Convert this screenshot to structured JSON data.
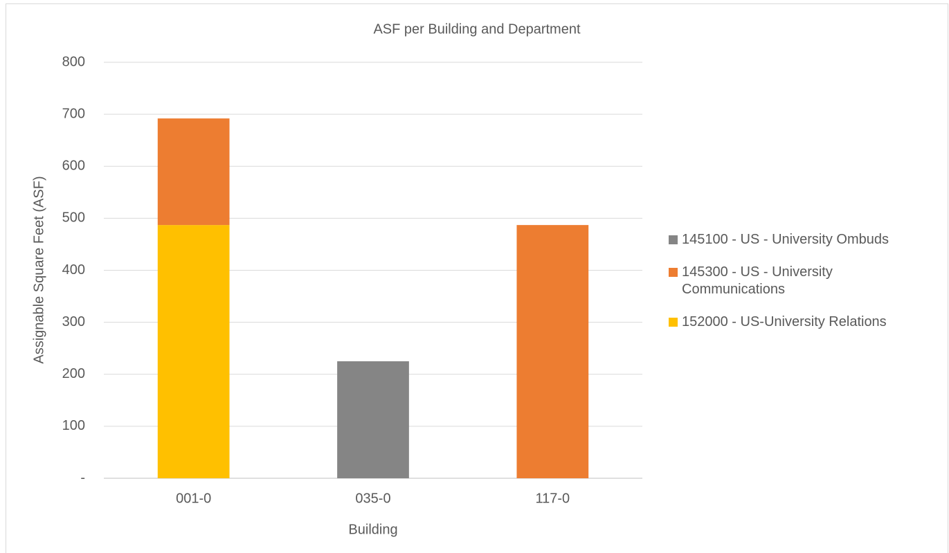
{
  "chart_data": {
    "type": "stacked_bar",
    "title": "ASF per Building and Department",
    "x_label": "Building",
    "y_label": "Assignable Square Feet (ASF)",
    "categories": [
      "001-0",
      "035-0",
      "117-0"
    ],
    "series": [
      {
        "name": "145100 - US - University Ombuds",
        "color": "#858585",
        "values": [
          null,
          225,
          null
        ]
      },
      {
        "name": "145300 - US - University Communications",
        "color": "#ed7d31",
        "values": [
          205,
          null,
          487
        ]
      },
      {
        "name": "152000 - US-University Relations",
        "color": "#ffc000",
        "values": [
          487,
          null,
          null
        ]
      }
    ],
    "ylim": [
      0,
      800
    ],
    "yticks": [
      {
        "value": 0,
        "label": "-"
      },
      100,
      200,
      300,
      400,
      500,
      600,
      700,
      800
    ],
    "grid": true,
    "legend": "right"
  }
}
